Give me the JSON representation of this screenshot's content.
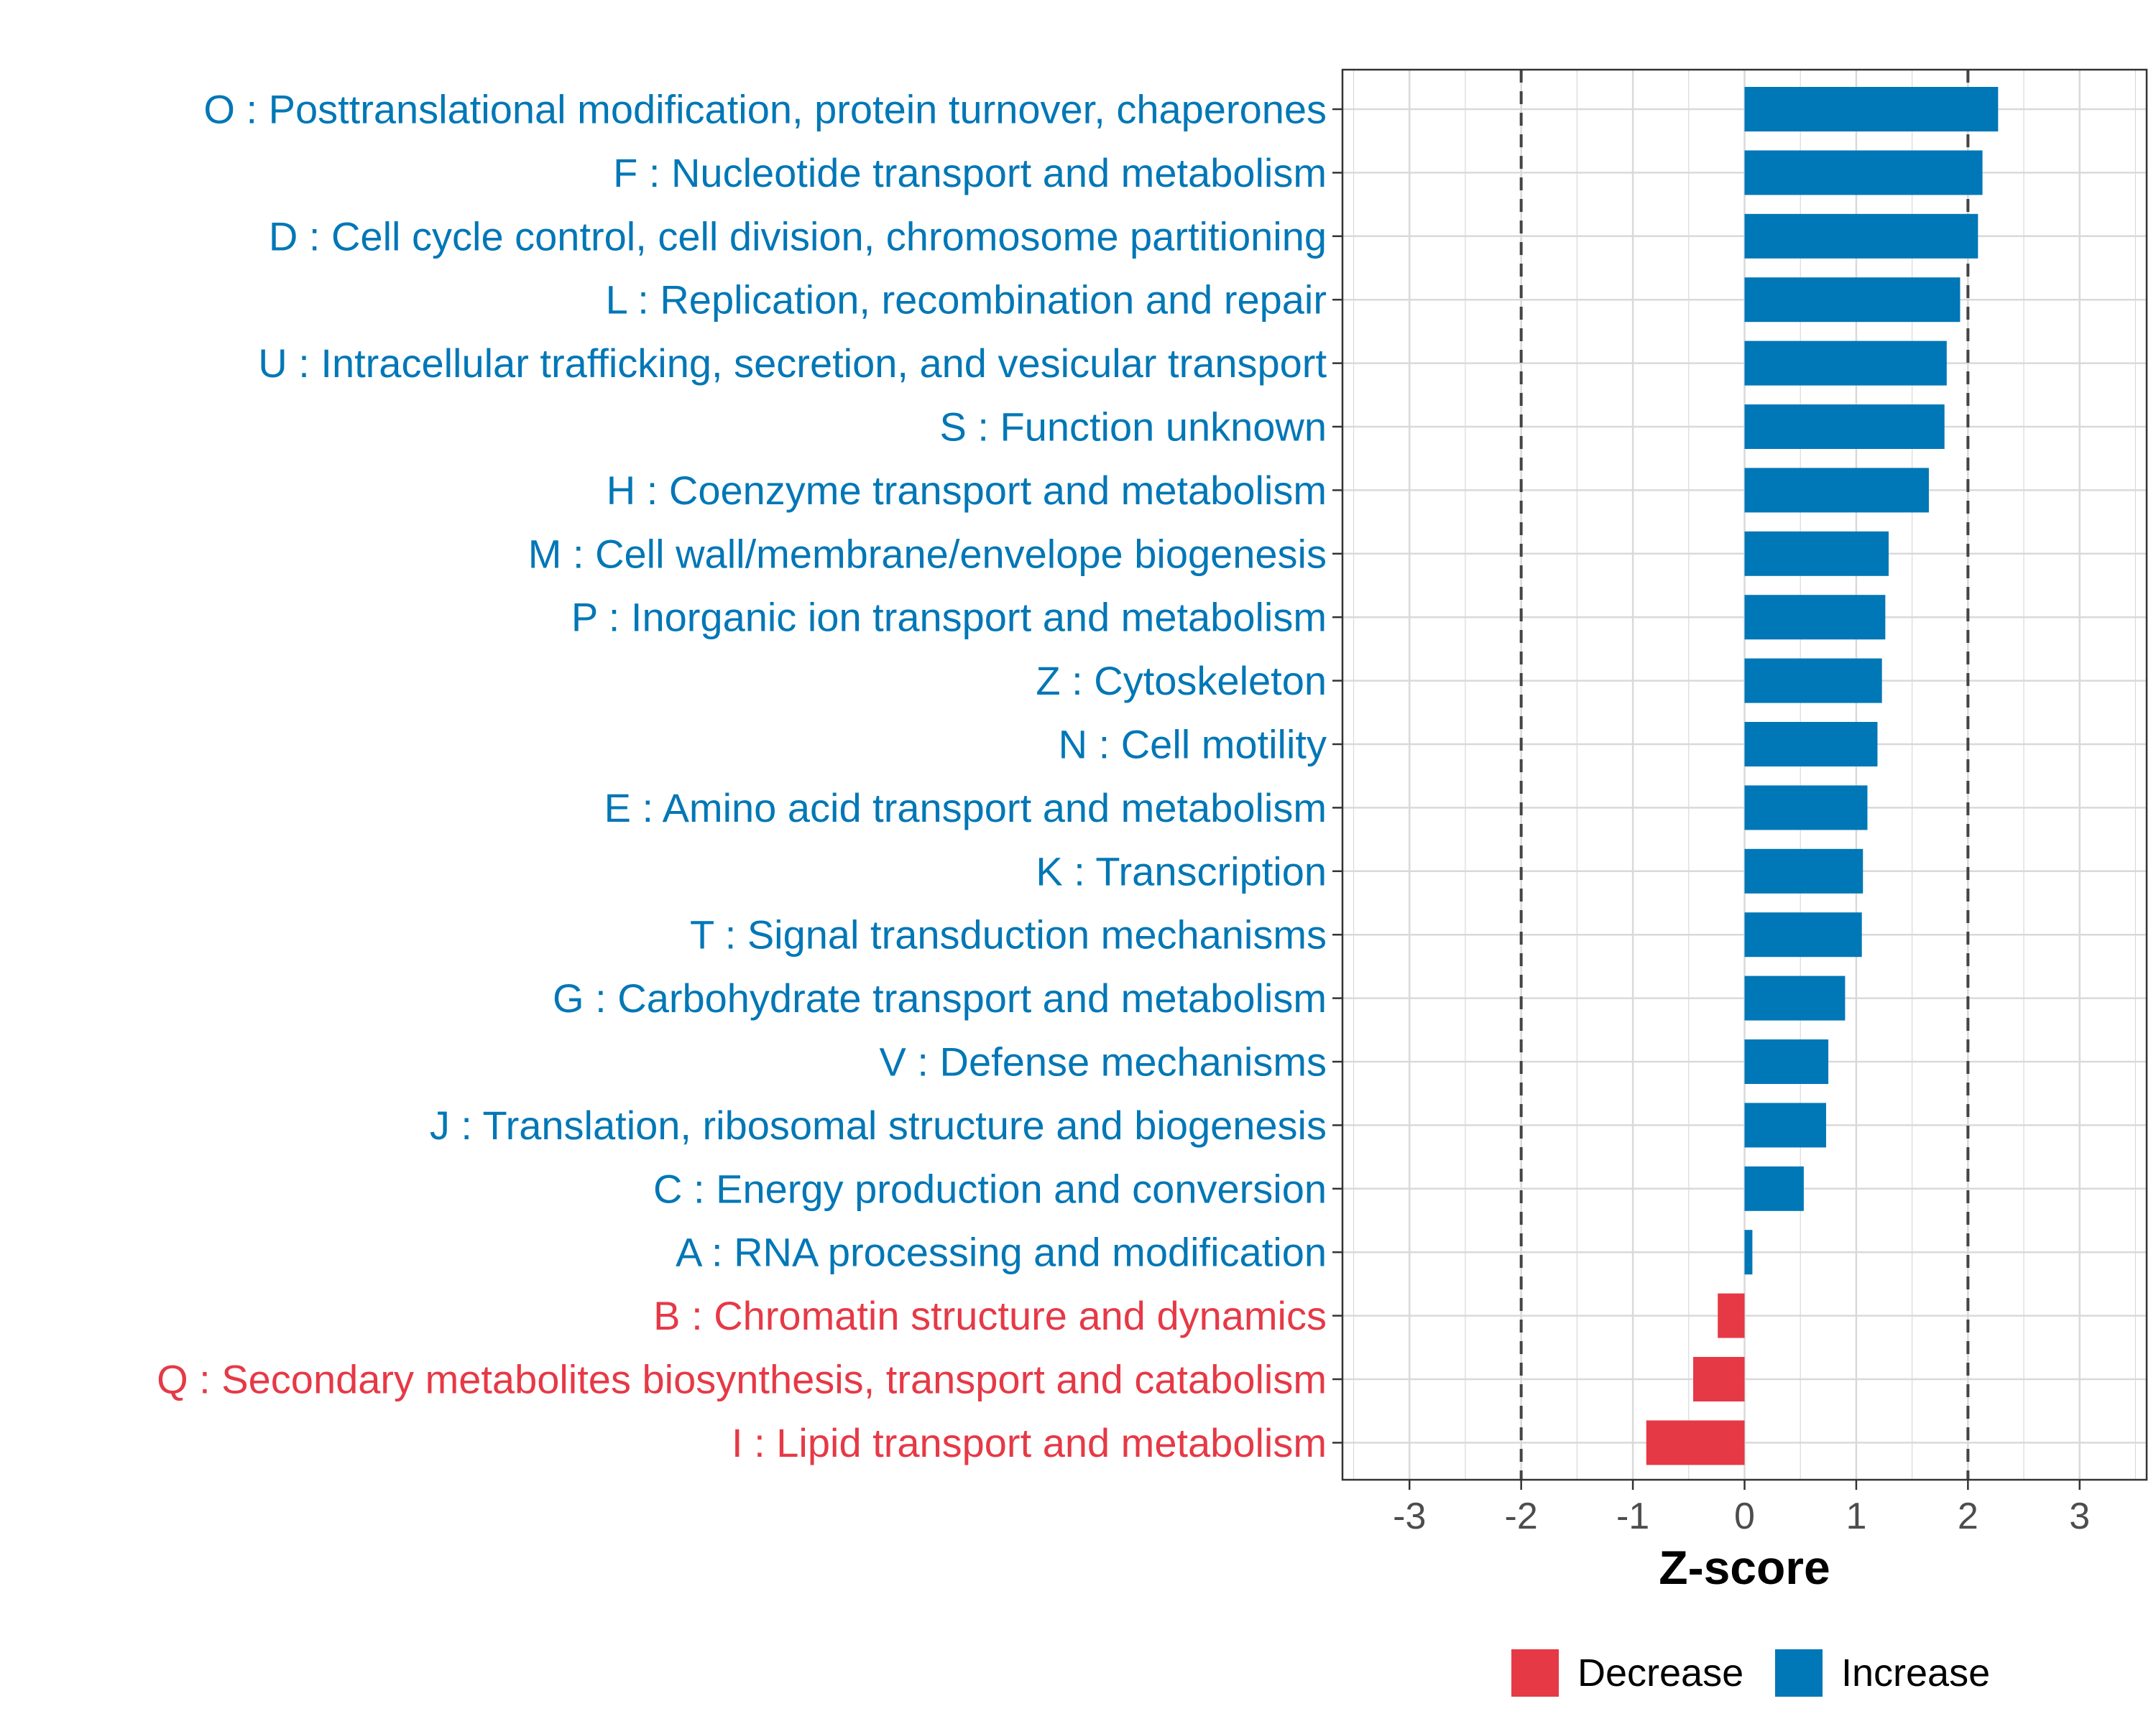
{
  "chart_data": {
    "type": "bar",
    "orientation": "horizontal",
    "xlabel": "Z-score",
    "xlim": [
      -3.6,
      3.6
    ],
    "xticks": [
      -3,
      -2,
      -1,
      0,
      1,
      2,
      3
    ],
    "xtick_labels": [
      "-3",
      "-2",
      "-1",
      "0",
      "1",
      "2",
      "3"
    ],
    "reference_lines": [
      -2,
      2
    ],
    "grid": true,
    "legend_position": "bottom",
    "legend": [
      {
        "key": "Decrease",
        "label": "Decrease",
        "color": "#E63946"
      },
      {
        "key": "Increase",
        "label": "Increase",
        "color": "#0077B6"
      }
    ],
    "categories": [
      {
        "label": "O : Posttranslational modification, protein turnover, chaperones",
        "value": 2.27,
        "group": "Increase"
      },
      {
        "label": "F : Nucleotide transport and metabolism",
        "value": 2.13,
        "group": "Increase"
      },
      {
        "label": "D : Cell cycle control, cell division, chromosome partitioning",
        "value": 2.09,
        "group": "Increase"
      },
      {
        "label": "L : Replication, recombination and repair",
        "value": 1.93,
        "group": "Increase"
      },
      {
        "label": "U : Intracellular trafficking, secretion, and vesicular transport",
        "value": 1.81,
        "group": "Increase"
      },
      {
        "label": "S : Function unknown",
        "value": 1.79,
        "group": "Increase"
      },
      {
        "label": "H : Coenzyme transport and metabolism",
        "value": 1.65,
        "group": "Increase"
      },
      {
        "label": "M : Cell wall/membrane/envelope biogenesis",
        "value": 1.29,
        "group": "Increase"
      },
      {
        "label": "P : Inorganic ion transport and metabolism",
        "value": 1.26,
        "group": "Increase"
      },
      {
        "label": "Z : Cytoskeleton",
        "value": 1.23,
        "group": "Increase"
      },
      {
        "label": "N : Cell motility",
        "value": 1.19,
        "group": "Increase"
      },
      {
        "label": "E : Amino acid transport and metabolism",
        "value": 1.1,
        "group": "Increase"
      },
      {
        "label": "K : Transcription",
        "value": 1.06,
        "group": "Increase"
      },
      {
        "label": "T : Signal transduction mechanisms",
        "value": 1.05,
        "group": "Increase"
      },
      {
        "label": "G : Carbohydrate transport and metabolism",
        "value": 0.9,
        "group": "Increase"
      },
      {
        "label": "V : Defense mechanisms",
        "value": 0.75,
        "group": "Increase"
      },
      {
        "label": "J : Translation, ribosomal structure and biogenesis",
        "value": 0.73,
        "group": "Increase"
      },
      {
        "label": "C : Energy production and conversion",
        "value": 0.53,
        "group": "Increase"
      },
      {
        "label": "A : RNA processing and modification",
        "value": 0.07,
        "group": "Increase"
      },
      {
        "label": "B : Chromatin structure and dynamics",
        "value": -0.24,
        "group": "Decrease"
      },
      {
        "label": "Q : Secondary metabolites biosynthesis, transport and catabolism",
        "value": -0.46,
        "group": "Decrease"
      },
      {
        "label": "I : Lipid transport and metabolism",
        "value": -0.88,
        "group": "Decrease"
      }
    ]
  }
}
